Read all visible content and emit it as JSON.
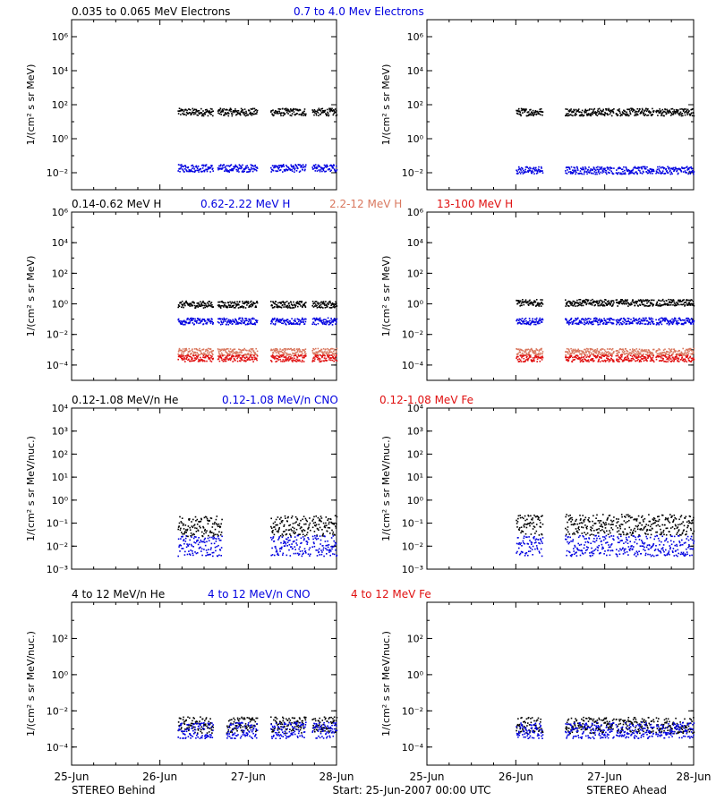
{
  "colors": {
    "black": "#000000",
    "blue": "#0000e0",
    "salmon": "#d9785f",
    "red": "#e01010"
  },
  "x_ticks": [
    "25-Jun",
    "26-Jun",
    "27-Jun",
    "28-Jun"
  ],
  "footer": {
    "left": "STEREO Behind",
    "center": "Start: 25-Jun-2007 00:00 UTC",
    "right": "STEREO Ahead"
  },
  "chart_data": [
    {
      "id": "electrons",
      "type": "scatter",
      "ylog_range": [
        -3,
        7
      ],
      "ytick_exponents": [
        -2,
        0,
        2,
        4,
        6
      ],
      "ylabel": "1/(cm² s sr MeV)",
      "legend": [
        {
          "text": "0.035 to 0.065 MeV Electrons",
          "color": "#000000"
        },
        {
          "text": "0.7 to 4.0 Mev Electrons",
          "color": "#0000e0"
        }
      ],
      "x_range_days": [
        0,
        3
      ],
      "series": [
        {
          "panel": "behind",
          "color": "#000000",
          "y": 40,
          "segments": [
            [
              1.2,
              1.6
            ],
            [
              1.65,
              2.1
            ],
            [
              2.25,
              2.65
            ],
            [
              2.72,
              3.0
            ]
          ]
        },
        {
          "panel": "behind",
          "color": "#0000e0",
          "y": 0.02,
          "segments": [
            [
              1.2,
              1.6
            ],
            [
              1.65,
              2.1
            ],
            [
              2.25,
              2.65
            ],
            [
              2.72,
              3.0
            ]
          ]
        },
        {
          "panel": "ahead",
          "color": "#000000",
          "y": 40,
          "segments": [
            [
              1.0,
              1.3
            ],
            [
              1.55,
              2.1
            ],
            [
              2.12,
              2.55
            ],
            [
              2.57,
              3.0
            ]
          ]
        },
        {
          "panel": "ahead",
          "color": "#0000e0",
          "y": 0.015,
          "segments": [
            [
              1.0,
              1.3
            ],
            [
              1.55,
              2.1
            ],
            [
              2.12,
              2.55
            ],
            [
              2.57,
              3.0
            ]
          ]
        }
      ]
    },
    {
      "id": "protons",
      "type": "scatter",
      "ylog_range": [
        -5,
        6
      ],
      "ytick_exponents": [
        -4,
        -2,
        0,
        2,
        4,
        6
      ],
      "ylabel": "1/(cm² s sr MeV)",
      "legend": [
        {
          "text": "0.14-0.62 MeV H",
          "color": "#000000"
        },
        {
          "text": "0.62-2.22 MeV H",
          "color": "#0000e0"
        },
        {
          "text": "2.2-12 MeV H",
          "color": "#d9785f"
        },
        {
          "text": "13-100 MeV H",
          "color": "#e01010"
        }
      ],
      "x_range_days": [
        0,
        3
      ],
      "series": [
        {
          "panel": "behind",
          "color": "#000000",
          "y": 1.0,
          "segments": [
            [
              1.2,
              1.6
            ],
            [
              1.65,
              2.1
            ],
            [
              2.25,
              2.65
            ],
            [
              2.72,
              3.0
            ]
          ]
        },
        {
          "panel": "behind",
          "color": "#0000e0",
          "y": 0.08,
          "segments": [
            [
              1.2,
              1.6
            ],
            [
              1.65,
              2.1
            ],
            [
              2.25,
              2.65
            ],
            [
              2.72,
              3.0
            ]
          ]
        },
        {
          "panel": "behind",
          "color": "#d9785f",
          "y": 0.0008,
          "segments": [
            [
              1.2,
              1.6
            ],
            [
              1.65,
              2.1
            ],
            [
              2.25,
              2.65
            ],
            [
              2.72,
              3.0
            ]
          ]
        },
        {
          "panel": "behind",
          "color": "#e01010",
          "y": 0.0003,
          "segments": [
            [
              1.2,
              1.6
            ],
            [
              1.65,
              2.1
            ],
            [
              2.25,
              2.65
            ],
            [
              2.72,
              3.0
            ]
          ]
        },
        {
          "panel": "ahead",
          "color": "#000000",
          "y": 1.3,
          "segments": [
            [
              1.0,
              1.3
            ],
            [
              1.55,
              2.1
            ],
            [
              2.12,
              2.55
            ],
            [
              2.57,
              3.0
            ]
          ]
        },
        {
          "panel": "ahead",
          "color": "#0000e0",
          "y": 0.08,
          "segments": [
            [
              1.0,
              1.3
            ],
            [
              1.55,
              2.1
            ],
            [
              2.12,
              2.55
            ],
            [
              2.57,
              3.0
            ]
          ]
        },
        {
          "panel": "ahead",
          "color": "#d9785f",
          "y": 0.0008,
          "segments": [
            [
              1.0,
              1.3
            ],
            [
              1.55,
              2.1
            ],
            [
              2.12,
              2.55
            ],
            [
              2.57,
              3.0
            ]
          ]
        },
        {
          "panel": "ahead",
          "color": "#e01010",
          "y": 0.0003,
          "segments": [
            [
              1.0,
              1.3
            ],
            [
              1.55,
              2.1
            ],
            [
              2.12,
              2.55
            ],
            [
              2.57,
              3.0
            ]
          ]
        }
      ]
    },
    {
      "id": "ions_low",
      "type": "scatter",
      "ylog_range": [
        -3,
        4
      ],
      "ytick_exponents": [
        -3,
        -2,
        -1,
        0,
        1,
        2,
        3,
        4
      ],
      "ylabel": "1/(cm² s sr MeV/nuc.)",
      "legend": [
        {
          "text": "0.12-1.08 MeV/n He",
          "color": "#000000"
        },
        {
          "text": "0.12-1.08 MeV/n CNO",
          "color": "#0000e0"
        },
        {
          "text": "0.12-1.08 MeV Fe",
          "color": "#e01010"
        }
      ],
      "x_range_days": [
        0,
        3
      ],
      "series": [
        {
          "panel": "behind",
          "color": "#000000",
          "y": 0.08,
          "segments": [
            [
              1.2,
              1.7
            ],
            [
              2.25,
              2.7
            ],
            [
              2.72,
              3.0
            ]
          ]
        },
        {
          "panel": "behind",
          "color": "#0000e0",
          "y": 0.011,
          "segments": [
            [
              1.2,
              1.7
            ],
            [
              2.25,
              2.7
            ],
            [
              2.72,
              3.0
            ]
          ]
        },
        {
          "panel": "ahead",
          "color": "#000000",
          "y": 0.09,
          "segments": [
            [
              1.0,
              1.3
            ],
            [
              1.55,
              2.1
            ],
            [
              2.12,
              3.0
            ]
          ]
        },
        {
          "panel": "ahead",
          "color": "#0000e0",
          "y": 0.011,
          "segments": [
            [
              1.0,
              1.3
            ],
            [
              1.55,
              2.1
            ],
            [
              2.12,
              3.0
            ]
          ]
        }
      ]
    },
    {
      "id": "ions_high",
      "type": "scatter",
      "ylog_range": [
        -5,
        4
      ],
      "ytick_exponents": [
        -4,
        -2,
        0,
        2
      ],
      "ylabel": "1/(cm² s sr MeV/nuc.)",
      "legend": [
        {
          "text": "4 to 12 MeV/n He",
          "color": "#000000"
        },
        {
          "text": "4 to 12 MeV/n CNO",
          "color": "#0000e0"
        },
        {
          "text": "4 to 12 MeV Fe",
          "color": "#e01010"
        }
      ],
      "x_range_days": [
        0,
        3
      ],
      "series": [
        {
          "panel": "behind",
          "color": "#000000",
          "y": 0.0018,
          "segments": [
            [
              1.2,
              1.6
            ],
            [
              1.75,
              2.1
            ],
            [
              2.25,
              2.65
            ],
            [
              2.72,
              3.0
            ]
          ]
        },
        {
          "panel": "behind",
          "color": "#0000e0",
          "y": 0.0009,
          "segments": [
            [
              1.2,
              1.6
            ],
            [
              1.75,
              2.1
            ],
            [
              2.25,
              2.65
            ],
            [
              2.72,
              3.0
            ]
          ]
        },
        {
          "panel": "ahead",
          "color": "#000000",
          "y": 0.0017,
          "segments": [
            [
              1.0,
              1.3
            ],
            [
              1.55,
              2.1
            ],
            [
              2.12,
              2.55
            ],
            [
              2.57,
              3.0
            ]
          ]
        },
        {
          "panel": "ahead",
          "color": "#0000e0",
          "y": 0.0009,
          "segments": [
            [
              1.0,
              1.3
            ],
            [
              1.55,
              2.1
            ],
            [
              2.12,
              2.55
            ],
            [
              2.57,
              3.0
            ]
          ]
        }
      ]
    }
  ]
}
